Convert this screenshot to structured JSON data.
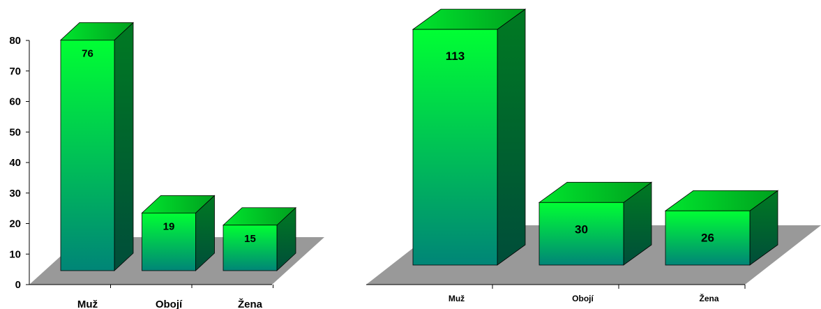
{
  "chart_data": [
    {
      "type": "bar",
      "categories": [
        "Muž",
        "Obojí",
        "Žena"
      ],
      "values": [
        76,
        19,
        15
      ],
      "value_labels": [
        "76",
        "19",
        "15"
      ],
      "yticks": [
        "0",
        "10",
        "20",
        "30",
        "40",
        "50",
        "60",
        "70",
        "80"
      ],
      "ylim": [
        0,
        80
      ],
      "title": "",
      "xlabel": "",
      "ylabel": "",
      "grid": false,
      "colors": {
        "bar_top": "#00ff33",
        "bar_bottom": "#008577",
        "side": "#00661f",
        "floor": "#999999"
      }
    },
    {
      "type": "bar",
      "categories": [
        "Muž",
        "Obojí",
        "Žena"
      ],
      "values": [
        113,
        30,
        26
      ],
      "value_labels": [
        "113",
        "30",
        "26"
      ],
      "ylim": [
        0,
        120
      ],
      "title": "",
      "xlabel": "",
      "ylabel": "",
      "grid": false,
      "colors": {
        "bar_top": "#00ff33",
        "bar_bottom": "#008577",
        "side": "#00661f",
        "floor": "#999999"
      }
    }
  ]
}
